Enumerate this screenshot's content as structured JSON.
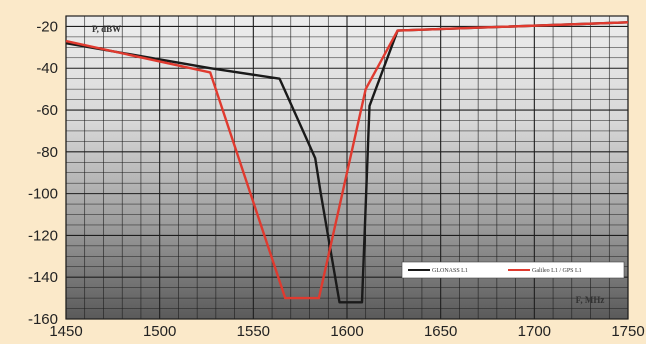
{
  "chart_data": {
    "type": "line",
    "ylabel": "P, dBW",
    "xlabel": "F, MHz",
    "xlim": [
      1450,
      1750
    ],
    "ylim": [
      -160,
      -15
    ],
    "x_ticks": [
      "1450",
      "1500",
      "1550",
      "1600",
      "1650",
      "1700",
      "1750"
    ],
    "y_ticks": [
      "-20",
      "-40",
      "-60",
      "-80",
      "-100",
      "-120",
      "-140",
      "-160"
    ],
    "grid": true,
    "legend_position": "bottom-right",
    "series": [
      {
        "name": "GLONASS L1",
        "color": "#1a1a1a",
        "points": [
          [
            1450,
            -28
          ],
          [
            1527,
            -40
          ],
          [
            1564,
            -45
          ],
          [
            1583,
            -83
          ],
          [
            1586,
            -100
          ],
          [
            1596,
            -152
          ],
          [
            1608,
            -152
          ],
          [
            1612,
            -58
          ],
          [
            1627,
            -22
          ],
          [
            1750,
            -18
          ]
        ]
      },
      {
        "name": "Galileo L1 / GPS L1",
        "color": "#e03a2f",
        "points": [
          [
            1450,
            -27
          ],
          [
            1527,
            -42
          ],
          [
            1567,
            -150
          ],
          [
            1585,
            -150
          ],
          [
            1610,
            -50
          ],
          [
            1627,
            -22
          ],
          [
            1750,
            -18
          ]
        ]
      }
    ]
  },
  "colors": {
    "background": "#fbe9c9",
    "grid": "#1e1e1e"
  }
}
